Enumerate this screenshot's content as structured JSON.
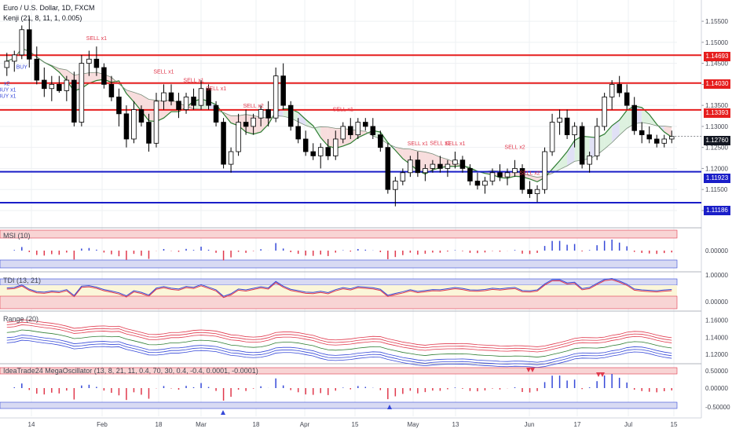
{
  "chart_data": {
    "type": "candlestick",
    "title": "Euro / U.S. Dollar, 1D, FXCM",
    "indicator_label": "Kenji (21, 8, 11, 1, 0.005)",
    "y_ticks": [
      "1.15500",
      "1.15000",
      "1.14500",
      "1.14000",
      "1.13500",
      "1.13000",
      "1.12500",
      "1.12000",
      "1.11500",
      "1.11000"
    ],
    "y_range": [
      1.1085,
      1.1595
    ],
    "x_ticks": [
      "14",
      "Feb",
      "18",
      "Mar",
      "18",
      "Apr",
      "15",
      "May",
      "13",
      "Jun",
      "17",
      "Jul",
      "15"
    ],
    "candles": [
      [
        1.144,
        1.1475,
        1.142,
        1.1455
      ],
      [
        1.1455,
        1.148,
        1.143,
        1.147
      ],
      [
        1.147,
        1.154,
        1.146,
        1.153
      ],
      [
        1.153,
        1.156,
        1.144,
        1.146
      ],
      [
        1.146,
        1.149,
        1.14,
        1.141
      ],
      [
        1.141,
        1.144,
        1.137,
        1.139
      ],
      [
        1.139,
        1.142,
        1.136,
        1.14
      ],
      [
        1.14,
        1.142,
        1.138,
        1.1385
      ],
      [
        1.1385,
        1.142,
        1.136,
        1.141
      ],
      [
        1.141,
        1.143,
        1.13,
        1.131
      ],
      [
        1.131,
        1.147,
        1.13,
        1.145
      ],
      [
        1.145,
        1.148,
        1.142,
        1.146
      ],
      [
        1.146,
        1.149,
        1.142,
        1.144
      ],
      [
        1.144,
        1.145,
        1.139,
        1.14
      ],
      [
        1.14,
        1.142,
        1.136,
        1.137
      ],
      [
        1.137,
        1.139,
        1.13,
        1.133
      ],
      [
        1.133,
        1.135,
        1.125,
        1.127
      ],
      [
        1.127,
        1.136,
        1.126,
        1.134
      ],
      [
        1.134,
        1.135,
        1.13,
        1.131
      ],
      [
        1.131,
        1.133,
        1.124,
        1.126
      ],
      [
        1.126,
        1.138,
        1.125,
        1.136
      ],
      [
        1.136,
        1.14,
        1.134,
        1.138
      ],
      [
        1.138,
        1.14,
        1.135,
        1.136
      ],
      [
        1.136,
        1.138,
        1.132,
        1.134
      ],
      [
        1.134,
        1.138,
        1.133,
        1.137
      ],
      [
        1.137,
        1.139,
        1.134,
        1.135
      ],
      [
        1.135,
        1.141,
        1.134,
        1.139
      ],
      [
        1.139,
        1.14,
        1.134,
        1.135
      ],
      [
        1.135,
        1.136,
        1.13,
        1.131
      ],
      [
        1.131,
        1.132,
        1.12,
        1.121
      ],
      [
        1.121,
        1.125,
        1.119,
        1.124
      ],
      [
        1.124,
        1.133,
        1.123,
        1.131
      ],
      [
        1.131,
        1.134,
        1.128,
        1.13
      ],
      [
        1.13,
        1.133,
        1.128,
        1.132
      ],
      [
        1.132,
        1.135,
        1.13,
        1.134
      ],
      [
        1.134,
        1.136,
        1.13,
        1.132
      ],
      [
        1.132,
        1.144,
        1.131,
        1.142
      ],
      [
        1.142,
        1.145,
        1.134,
        1.135
      ],
      [
        1.135,
        1.136,
        1.129,
        1.13
      ],
      [
        1.13,
        1.132,
        1.126,
        1.127
      ],
      [
        1.127,
        1.129,
        1.123,
        1.124
      ],
      [
        1.124,
        1.126,
        1.122,
        1.123
      ],
      [
        1.123,
        1.126,
        1.12,
        1.125
      ],
      [
        1.125,
        1.127,
        1.122,
        1.123
      ],
      [
        1.123,
        1.129,
        1.122,
        1.127
      ],
      [
        1.127,
        1.131,
        1.126,
        1.13
      ],
      [
        1.13,
        1.132,
        1.127,
        1.128
      ],
      [
        1.128,
        1.132,
        1.127,
        1.131
      ],
      [
        1.131,
        1.132,
        1.129,
        1.13
      ],
      [
        1.13,
        1.132,
        1.127,
        1.128
      ],
      [
        1.128,
        1.129,
        1.124,
        1.125
      ],
      [
        1.125,
        1.126,
        1.114,
        1.115
      ],
      [
        1.115,
        1.118,
        1.111,
        1.117
      ],
      [
        1.117,
        1.12,
        1.116,
        1.119
      ],
      [
        1.119,
        1.123,
        1.118,
        1.122
      ],
      [
        1.122,
        1.124,
        1.118,
        1.119
      ],
      [
        1.119,
        1.121,
        1.117,
        1.12
      ],
      [
        1.12,
        1.122,
        1.119,
        1.121
      ],
      [
        1.121,
        1.123,
        1.119,
        1.12
      ],
      [
        1.12,
        1.122,
        1.118,
        1.121
      ],
      [
        1.121,
        1.124,
        1.12,
        1.122
      ],
      [
        1.122,
        1.123,
        1.119,
        1.12
      ],
      [
        1.12,
        1.121,
        1.116,
        1.117
      ],
      [
        1.117,
        1.119,
        1.115,
        1.116
      ],
      [
        1.116,
        1.118,
        1.114,
        1.117
      ],
      [
        1.117,
        1.12,
        1.116,
        1.119
      ],
      [
        1.119,
        1.121,
        1.117,
        1.118
      ],
      [
        1.118,
        1.12,
        1.116,
        1.119
      ],
      [
        1.119,
        1.122,
        1.118,
        1.12
      ],
      [
        1.12,
        1.121,
        1.114,
        1.115
      ],
      [
        1.115,
        1.117,
        1.113,
        1.114
      ],
      [
        1.114,
        1.116,
        1.112,
        1.115
      ],
      [
        1.115,
        1.125,
        1.114,
        1.124
      ],
      [
        1.124,
        1.133,
        1.123,
        1.131
      ],
      [
        1.131,
        1.134,
        1.128,
        1.132
      ],
      [
        1.132,
        1.134,
        1.127,
        1.128
      ],
      [
        1.128,
        1.131,
        1.125,
        1.13
      ],
      [
        1.13,
        1.131,
        1.12,
        1.121
      ],
      [
        1.121,
        1.124,
        1.119,
        1.123
      ],
      [
        1.123,
        1.132,
        1.122,
        1.13
      ],
      [
        1.13,
        1.138,
        1.129,
        1.137
      ],
      [
        1.137,
        1.141,
        1.134,
        1.14
      ],
      [
        1.14,
        1.142,
        1.137,
        1.138
      ],
      [
        1.138,
        1.14,
        1.134,
        1.135
      ],
      [
        1.135,
        1.137,
        1.128,
        1.129
      ],
      [
        1.129,
        1.131,
        1.126,
        1.128
      ],
      [
        1.128,
        1.13,
        1.126,
        1.127
      ],
      [
        1.127,
        1.128,
        1.125,
        1.126
      ],
      [
        1.126,
        1.128,
        1.125,
        1.127
      ],
      [
        1.127,
        1.129,
        1.126,
        1.1276
      ]
    ],
    "ma_line_note": "smoothed moving average overlay",
    "levels": [
      {
        "label": "1.14693",
        "value": 1.14693,
        "color": "#e61e1e"
      },
      {
        "label": "1.14030",
        "value": 1.1403,
        "color": "#e61e1e"
      },
      {
        "label": "1.13393",
        "value": 1.13393,
        "color": "#e61e1e"
      },
      {
        "label": "1.11923",
        "value": 1.11923,
        "color": "#1a1ec8"
      },
      {
        "label": "1.11186",
        "value": 1.11186,
        "color": "#1a1ec8"
      }
    ],
    "last_price": {
      "label": "1.12760",
      "value": 1.1276
    },
    "signals": [
      {
        "text": "BUY",
        "kind": "buy",
        "index": 2
      },
      {
        "text": "BUY x1",
        "kind": "buy",
        "index": 0
      },
      {
        "text": "BUY x1",
        "kind": "buy",
        "index": 0
      },
      {
        "text": "x2",
        "kind": "buy",
        "index": 0
      },
      {
        "text": "SELL x1",
        "kind": "sell",
        "index": 12
      },
      {
        "text": "SELL x1",
        "kind": "sell",
        "index": 21
      },
      {
        "text": "SELL x1",
        "kind": "sell",
        "index": 25
      },
      {
        "text": "SELL x1",
        "kind": "sell",
        "index": 28
      },
      {
        "text": "SELL x2",
        "kind": "sell",
        "index": 33
      },
      {
        "text": "SELL x1",
        "kind": "sell",
        "index": 45
      },
      {
        "text": "SELL x1",
        "kind": "sell",
        "index": 55
      },
      {
        "text": "SELL x1",
        "kind": "sell",
        "index": 58
      },
      {
        "text": "SELL x1",
        "kind": "sell",
        "index": 60
      },
      {
        "text": "SELL x2",
        "kind": "sell",
        "index": 68
      },
      {
        "text": "SELL x2",
        "kind": "sell",
        "index": 70
      }
    ],
    "panes": [
      {
        "label": "MSI (10)",
        "ticks": [
          "0.00000"
        ]
      },
      {
        "label": "TDI (13, 21)",
        "ticks": [
          "1.00000",
          "0.00000"
        ]
      },
      {
        "label": "Range (20)",
        "ticks": [
          "1.16000",
          "1.14000",
          "1.12000"
        ]
      },
      {
        "label": "IdeaTrade24 MegaOscillator (13, 8, 21, 11, 0.4, 70, 30, 0.4, -0.4, 0.0001, -0.0001)",
        "ticks": [
          "0.50000",
          "0.00000",
          "-0.50000"
        ]
      }
    ]
  },
  "colors": {
    "bull": "#ffffff",
    "bear": "#000000",
    "grid": "#eef0f3",
    "ma": "#2e7d32",
    "cloud_red": "#f7d7d7",
    "cloud_green": "#d7efd9",
    "cloud_blue": "#dcdcf5",
    "pos_bar": "#3548d8",
    "neg_bar": "#e0384c"
  }
}
